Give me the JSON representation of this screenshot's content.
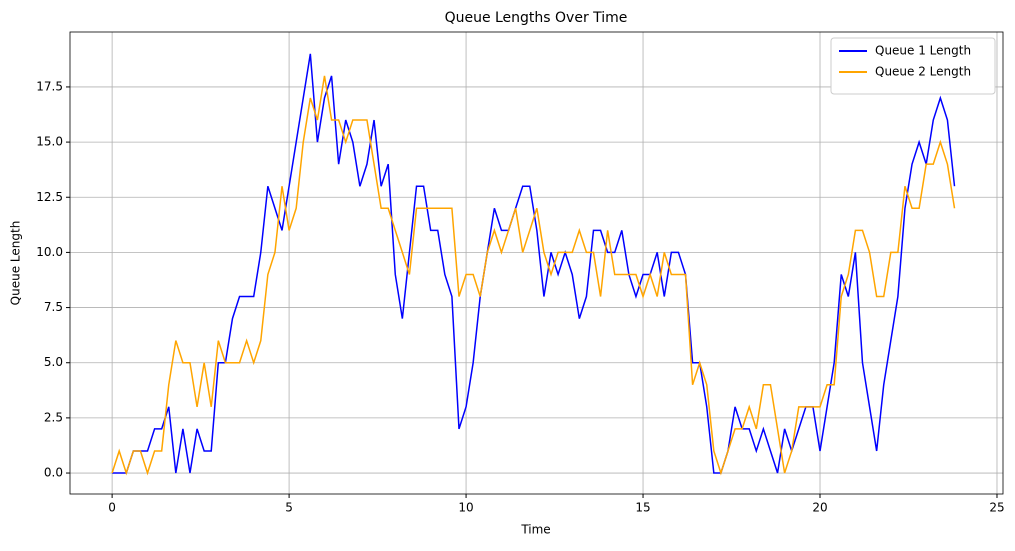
{
  "chart_data": {
    "type": "line",
    "title": "Queue Lengths Over Time",
    "x_label": "Time",
    "y_label": "Queue Length",
    "x": [
      0,
      0.2,
      0.4,
      0.6,
      0.8,
      1,
      1.2,
      1.4,
      1.6,
      1.8,
      2,
      2.2,
      2.4,
      2.6,
      2.8,
      3,
      3.2,
      3.4,
      3.6,
      3.8,
      4,
      4.2,
      4.4,
      4.6,
      4.8,
      5,
      5.2,
      5.4,
      5.6,
      5.8,
      6,
      6.2,
      6.4,
      6.6,
      6.8,
      7,
      7.2,
      7.4,
      7.6,
      7.8,
      8,
      8.2,
      8.4,
      8.6,
      8.8,
      9,
      9.2,
      9.4,
      9.6,
      9.8,
      10,
      10.2,
      10.4,
      10.6,
      10.8,
      11,
      11.2,
      11.4,
      11.6,
      11.8,
      12,
      12.2,
      12.4,
      12.6,
      12.8,
      13,
      13.2,
      13.4,
      13.6,
      13.8,
      14,
      14.2,
      14.4,
      14.6,
      14.8,
      15,
      15.2,
      15.4,
      15.6,
      15.8,
      16,
      16.2,
      16.4,
      16.6,
      16.8,
      17,
      17.2,
      17.4,
      17.6,
      17.8,
      18,
      18.2,
      18.4,
      18.6,
      18.8,
      19,
      19.2,
      19.4,
      19.6,
      19.8,
      20,
      20.2,
      20.4,
      20.6,
      20.8,
      21,
      21.2,
      21.4,
      21.6,
      21.8,
      22,
      22.2,
      22.4,
      22.6,
      22.8,
      23,
      23.2,
      23.4,
      23.6,
      23.8
    ],
    "series": [
      {
        "name": "Queue 1 Length",
        "color": "#0000ff",
        "values": [
          0,
          0,
          0,
          1,
          1,
          1,
          2,
          2,
          3,
          0,
          2,
          0,
          2,
          1,
          1,
          5,
          5,
          7,
          8,
          8,
          8,
          10,
          13,
          12,
          11,
          13,
          15,
          17,
          19,
          15,
          17,
          18,
          14,
          16,
          15,
          13,
          14,
          16,
          13,
          14,
          9,
          7,
          10,
          13,
          13,
          11,
          11,
          9,
          8,
          2,
          3,
          5,
          8,
          10,
          12,
          11,
          11,
          12,
          13,
          13,
          11,
          8,
          10,
          9,
          10,
          9,
          7,
          8,
          11,
          11,
          10,
          10,
          11,
          9,
          8,
          9,
          9,
          10,
          8,
          10,
          10,
          9,
          5,
          5,
          3,
          0,
          0,
          1,
          3,
          2,
          2,
          1,
          2,
          1,
          0,
          2,
          1,
          2,
          3,
          3,
          1,
          3,
          5,
          9,
          8,
          10,
          5,
          3,
          1,
          4,
          6,
          8,
          12,
          14,
          15,
          14,
          16,
          17,
          16,
          13
        ]
      },
      {
        "name": "Queue 2 Length",
        "color": "#ffa500",
        "values": [
          0,
          1,
          0,
          1,
          1,
          0,
          1,
          1,
          4,
          6,
          5,
          5,
          3,
          5,
          3,
          6,
          5,
          5,
          5,
          6,
          5,
          6,
          9,
          10,
          13,
          11,
          12,
          15,
          17,
          16,
          18,
          16,
          16,
          15,
          16,
          16,
          16,
          14,
          12,
          12,
          11,
          10,
          9,
          12,
          12,
          12,
          12,
          12,
          12,
          8,
          9,
          9,
          8,
          10,
          11,
          10,
          11,
          12,
          10,
          11,
          12,
          10,
          9,
          10,
          10,
          10,
          11,
          10,
          10,
          8,
          11,
          9,
          9,
          9,
          9,
          8,
          9,
          8,
          10,
          9,
          9,
          9,
          4,
          5,
          4,
          1,
          0,
          1,
          2,
          2,
          3,
          2,
          4,
          4,
          2,
          0,
          1,
          3,
          3,
          3,
          3,
          4,
          4,
          8,
          9,
          11,
          11,
          10,
          8,
          8,
          10,
          10,
          13,
          12,
          12,
          14,
          14,
          15,
          14,
          12
        ]
      }
    ],
    "xlim": [
      -1.19,
      25.17
    ],
    "ylim": [
      -0.95,
      19.99
    ],
    "xticks": [
      0,
      5,
      10,
      15,
      20,
      25
    ],
    "yticks": [
      {
        "value": 0,
        "label": "0.0"
      },
      2.5,
      {
        "value": 5,
        "label": "5.0"
      },
      7.5,
      {
        "value": 10,
        "label": "10.0"
      },
      12.5,
      {
        "value": 15,
        "label": "15.0"
      },
      17.5
    ],
    "grid": true,
    "legend": "upper right"
  }
}
